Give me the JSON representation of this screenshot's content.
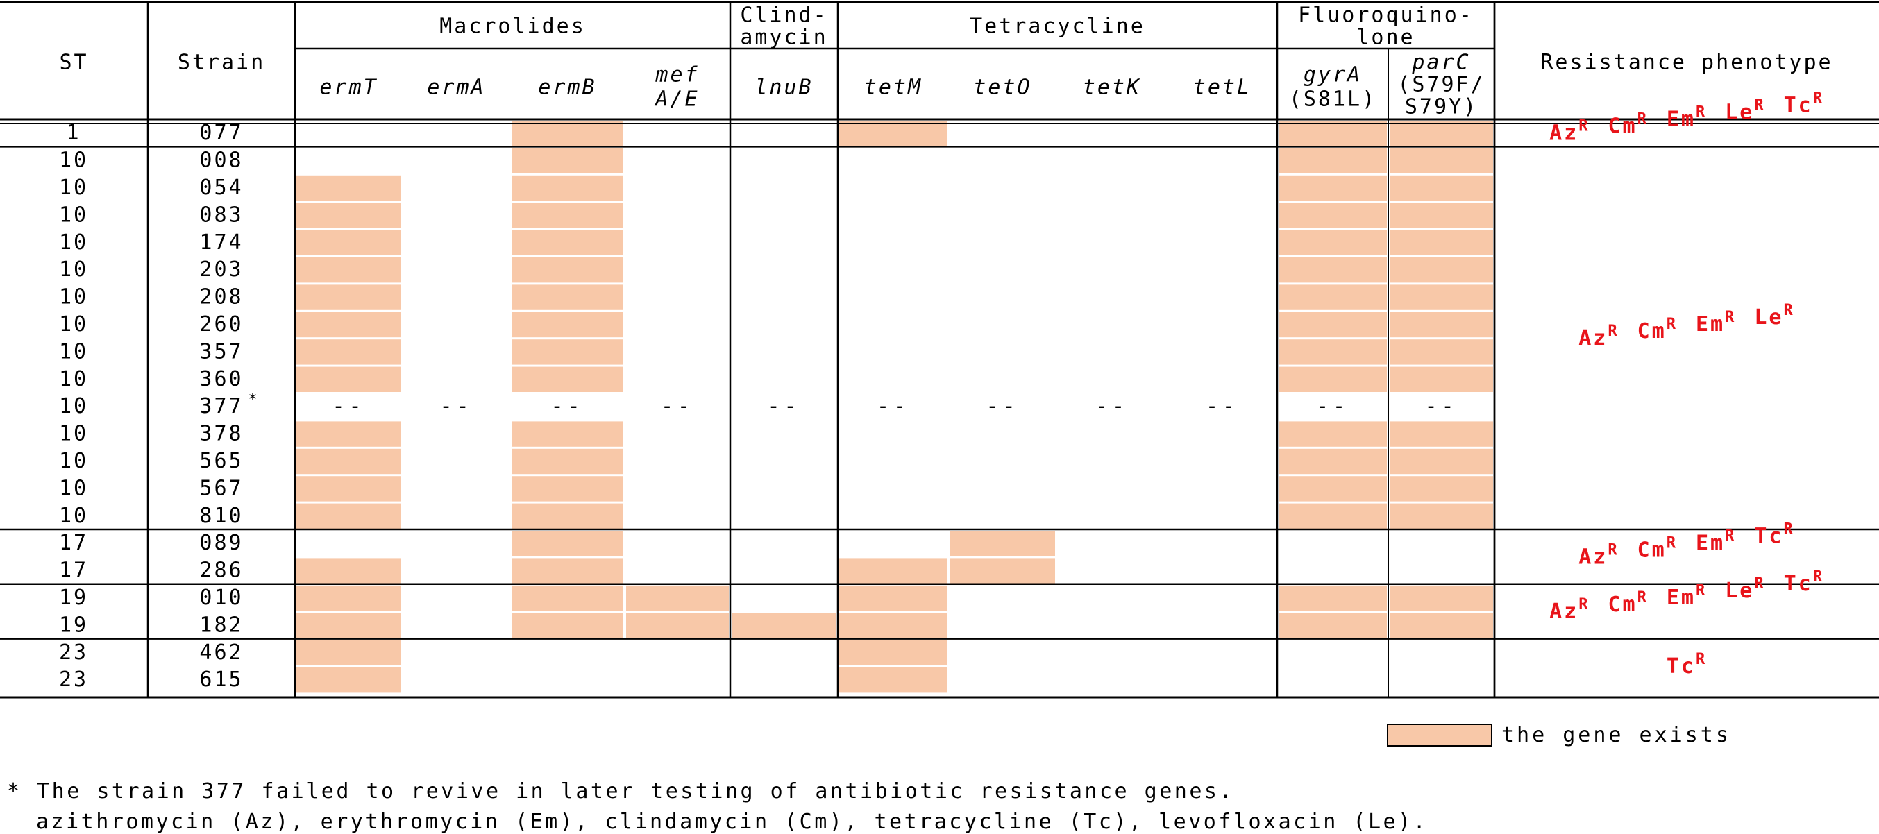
{
  "table": {
    "header": {
      "st": "ST",
      "strain": "Strain",
      "resistance": "Resistance phenotype",
      "groups": [
        {
          "name": "macrolides",
          "lines": [
            "Macrolides"
          ]
        },
        {
          "name": "clindamycin",
          "lines": [
            "Clind-",
            "amycin"
          ]
        },
        {
          "name": "tetracycline",
          "lines": [
            "Tetracycline"
          ]
        },
        {
          "name": "fluoroquinolone",
          "lines": [
            "Fluoroquino-",
            "lone"
          ]
        }
      ],
      "genes": [
        {
          "lines": [
            "ermT"
          ],
          "italic": [
            true
          ]
        },
        {
          "lines": [
            "ermA"
          ],
          "italic": [
            true
          ]
        },
        {
          "lines": [
            "ermB"
          ],
          "italic": [
            true
          ]
        },
        {
          "lines": [
            "mef",
            "A/E"
          ],
          "italic": [
            true,
            true
          ]
        },
        {
          "lines": [
            "lnuB"
          ],
          "italic": [
            true
          ]
        },
        {
          "lines": [
            "tetM"
          ],
          "italic": [
            true
          ]
        },
        {
          "lines": [
            "tetO"
          ],
          "italic": [
            true
          ]
        },
        {
          "lines": [
            "tetK"
          ],
          "italic": [
            true
          ]
        },
        {
          "lines": [
            "tetL"
          ],
          "italic": [
            true
          ]
        },
        {
          "lines": [
            "gyrA",
            "(S81L)"
          ],
          "italic": [
            true,
            false
          ]
        },
        {
          "lines": [
            "parC",
            "(S79F/",
            "S79Y)"
          ],
          "italic": [
            true,
            false,
            false
          ]
        }
      ]
    },
    "rows": [
      {
        "st": "1",
        "strain": "077",
        "genes": [
          0,
          0,
          1,
          0,
          0,
          1,
          0,
          0,
          0,
          1,
          1
        ]
      },
      {
        "st": "10",
        "strain": "008",
        "genes": [
          0,
          0,
          1,
          0,
          0,
          0,
          0,
          0,
          0,
          1,
          1
        ]
      },
      {
        "st": "10",
        "strain": "054",
        "genes": [
          1,
          0,
          1,
          0,
          0,
          0,
          0,
          0,
          0,
          1,
          1
        ]
      },
      {
        "st": "10",
        "strain": "083",
        "genes": [
          1,
          0,
          1,
          0,
          0,
          0,
          0,
          0,
          0,
          1,
          1
        ]
      },
      {
        "st": "10",
        "strain": "174",
        "genes": [
          1,
          0,
          1,
          0,
          0,
          0,
          0,
          0,
          0,
          1,
          1
        ]
      },
      {
        "st": "10",
        "strain": "203",
        "genes": [
          1,
          0,
          1,
          0,
          0,
          0,
          0,
          0,
          0,
          1,
          1
        ]
      },
      {
        "st": "10",
        "strain": "208",
        "genes": [
          1,
          0,
          1,
          0,
          0,
          0,
          0,
          0,
          0,
          1,
          1
        ]
      },
      {
        "st": "10",
        "strain": "260",
        "genes": [
          1,
          0,
          1,
          0,
          0,
          0,
          0,
          0,
          0,
          1,
          1
        ]
      },
      {
        "st": "10",
        "strain": "357",
        "genes": [
          1,
          0,
          1,
          0,
          0,
          0,
          0,
          0,
          0,
          1,
          1
        ]
      },
      {
        "st": "10",
        "strain": "360",
        "genes": [
          1,
          0,
          1,
          0,
          0,
          0,
          0,
          0,
          0,
          1,
          1
        ]
      },
      {
        "st": "10",
        "strain": "377",
        "strain_mark": "*",
        "missing": true,
        "missing_mark": "--"
      },
      {
        "st": "10",
        "strain": "378",
        "genes": [
          1,
          0,
          1,
          0,
          0,
          0,
          0,
          0,
          0,
          1,
          1
        ]
      },
      {
        "st": "10",
        "strain": "565",
        "genes": [
          1,
          0,
          1,
          0,
          0,
          0,
          0,
          0,
          0,
          1,
          1
        ]
      },
      {
        "st": "10",
        "strain": "567",
        "genes": [
          1,
          0,
          1,
          0,
          0,
          0,
          0,
          0,
          0,
          1,
          1
        ]
      },
      {
        "st": "10",
        "strain": "810",
        "genes": [
          1,
          0,
          1,
          0,
          0,
          0,
          0,
          0,
          0,
          1,
          1
        ]
      },
      {
        "st": "17",
        "strain": "089",
        "genes": [
          0,
          0,
          1,
          0,
          0,
          0,
          1,
          0,
          0,
          0,
          0
        ]
      },
      {
        "st": "17",
        "strain": "286",
        "genes": [
          1,
          0,
          1,
          0,
          0,
          1,
          1,
          0,
          0,
          0,
          0
        ]
      },
      {
        "st": "19",
        "strain": "010",
        "genes": [
          1,
          0,
          1,
          1,
          0,
          1,
          0,
          0,
          0,
          1,
          1
        ]
      },
      {
        "st": "19",
        "strain": "182",
        "genes": [
          1,
          0,
          1,
          1,
          1,
          1,
          0,
          0,
          0,
          1,
          1
        ]
      },
      {
        "st": "23",
        "strain": "462",
        "genes": [
          1,
          0,
          0,
          0,
          0,
          1,
          0,
          0,
          0,
          0,
          0
        ]
      },
      {
        "st": "23",
        "strain": "615",
        "genes": [
          1,
          0,
          0,
          0,
          0,
          1,
          0,
          0,
          0,
          0,
          0
        ]
      }
    ],
    "group_boundaries_after_rows": [
      0,
      14,
      16,
      18
    ],
    "phenotypes": [
      {
        "rows": [
          0,
          0
        ],
        "drugs": [
          "Az",
          "Cm",
          "Em",
          "Le",
          "Tc"
        ]
      },
      {
        "rows": [
          1,
          14
        ],
        "drugs": [
          "Az",
          "Cm",
          "Em",
          "Le"
        ]
      },
      {
        "rows": [
          15,
          16
        ],
        "drugs": [
          "Az",
          "Cm",
          "Em",
          "Tc"
        ]
      },
      {
        "rows": [
          17,
          18
        ],
        "drugs": [
          "Az",
          "Cm",
          "Em",
          "Le",
          "Tc"
        ]
      },
      {
        "rows": [
          19,
          20
        ],
        "drugs": [
          "Tc"
        ]
      }
    ],
    "resistance_superscript": "R"
  },
  "legend": {
    "label": "the gene exists"
  },
  "footnotes": {
    "line1": "* The strain 377 failed to revive in later testing of antibiotic resistance genes.",
    "line2": "azithromycin (Az), erythromycin (Em), clindamycin (Cm), tetracycline (Tc), levofloxacin (Le)."
  },
  "colors": {
    "gene_present": "#f8c8a8",
    "phenotype_text": "#e8141a",
    "lines": "#000000",
    "background": "#ffffff"
  }
}
